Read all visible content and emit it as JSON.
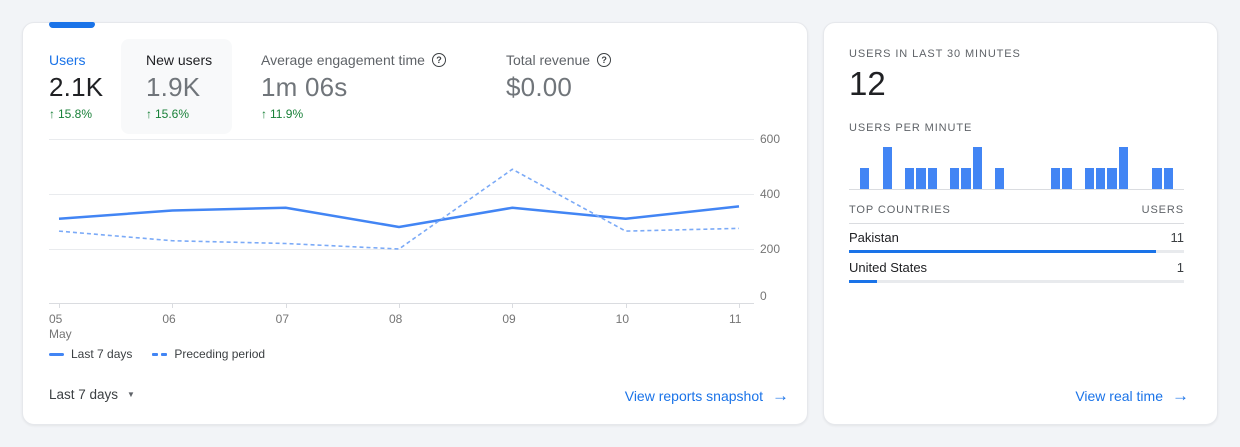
{
  "colors": {
    "page": "#f2f4f7",
    "card": "#ffffff",
    "accent": "#1a73e8",
    "line_solid": "#4285f4",
    "line_dashed": "#7baaf7",
    "positive": "#188038",
    "text_dark": "#202124",
    "text_gray": "#5f6368",
    "grid": "#e9ebee",
    "axis": "#dadce0",
    "hover_bg": "#f8f9fa",
    "country_track": "#e8eaed"
  },
  "icons": {
    "help": "?",
    "up_arrow": "↑",
    "caret": "▼",
    "forward_arrow": "→"
  },
  "left_card": {
    "metrics": [
      {
        "label": "Users",
        "value": "2.1K",
        "delta": "15.8%",
        "state": "active"
      },
      {
        "label": "New users",
        "value": "1.9K",
        "delta": "15.6%",
        "state": "hover"
      },
      {
        "label": "Average engagement time",
        "value": "1m 06s",
        "delta": "11.9%",
        "has_help": true
      },
      {
        "label": "Total revenue",
        "value": "$0.00",
        "delta": "",
        "has_help": true
      }
    ],
    "legend": [
      {
        "label": "Last 7 days",
        "style": "solid"
      },
      {
        "label": "Preceding period",
        "style": "dashed"
      }
    ],
    "date_range_label": "Last 7 days",
    "link_label": "View reports snapshot"
  },
  "right_card": {
    "realtime_caption": "USERS IN LAST 30 MINUTES",
    "realtime_value": "12",
    "per_minute_caption": "USERS PER MINUTE",
    "countries_header": {
      "name": "TOP COUNTRIES",
      "users": "USERS"
    },
    "countries": [
      {
        "name": "Pakistan",
        "users": "11"
      },
      {
        "name": "United States",
        "users": "1"
      }
    ],
    "link_label": "View real time"
  },
  "chart_data": [
    {
      "type": "line",
      "title": "Users over time (last 7 days vs preceding period)",
      "x": [
        "05",
        "06",
        "07",
        "08",
        "09",
        "10",
        "11"
      ],
      "x_month": "May",
      "ylim": [
        0,
        600
      ],
      "yticks": [
        600,
        400,
        200,
        0
      ],
      "grid": true,
      "legend_position": "bottom",
      "series": [
        {
          "name": "Last 7 days",
          "style": "solid",
          "values": [
            310,
            340,
            350,
            280,
            350,
            310,
            355
          ]
        },
        {
          "name": "Preceding period",
          "style": "dashed",
          "values": [
            265,
            230,
            220,
            200,
            490,
            265,
            275
          ]
        }
      ]
    },
    {
      "type": "bar",
      "title": "Users per minute (last 30 minutes)",
      "ylim": [
        0,
        2
      ],
      "values": [
        0,
        1,
        0,
        2,
        0,
        1,
        1,
        1,
        0,
        1,
        1,
        2,
        0,
        1,
        0,
        0,
        0,
        0,
        1,
        1,
        0,
        1,
        1,
        1,
        2,
        0,
        0,
        1,
        1,
        0
      ]
    }
  ]
}
